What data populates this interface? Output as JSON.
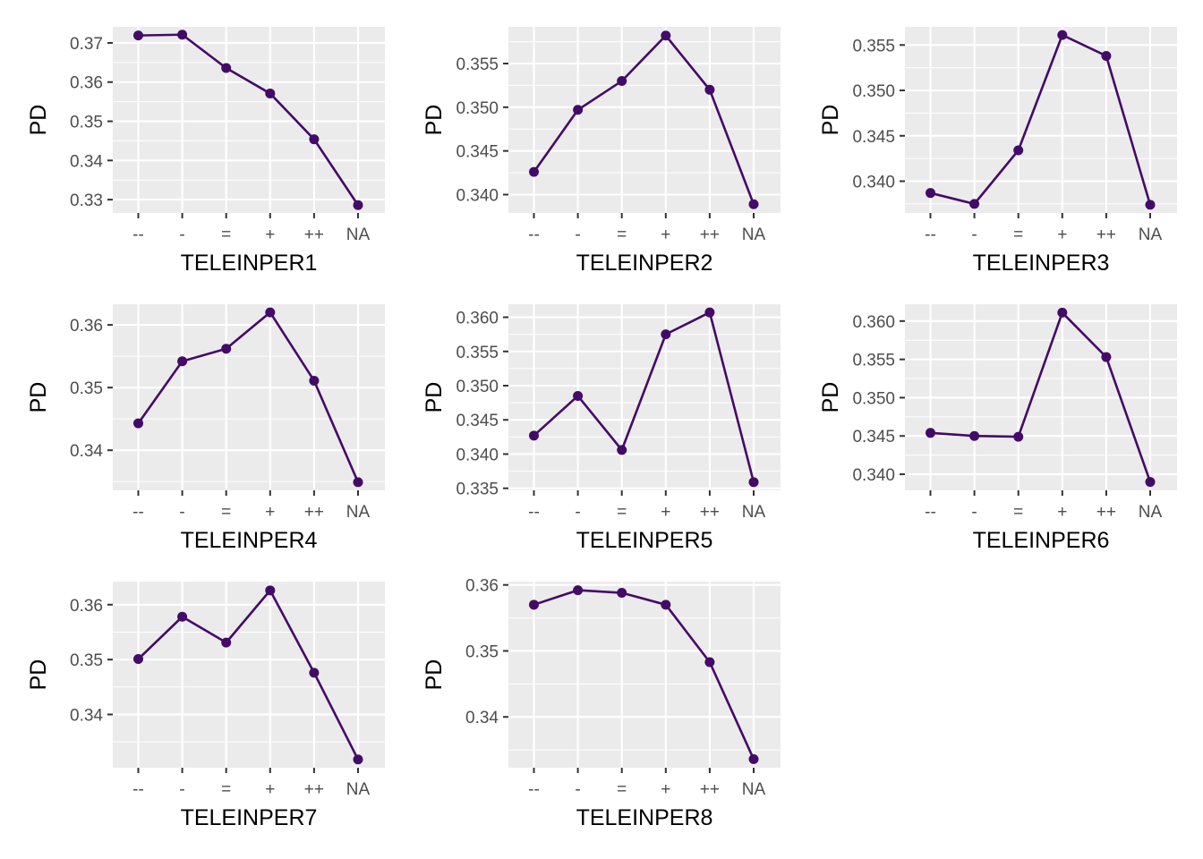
{
  "chart_data": [
    {
      "type": "line",
      "xlabel": "TELEINPER1",
      "ylabel": "PD",
      "categories": [
        "--",
        "-",
        "=",
        "+",
        "++",
        "NA"
      ],
      "values": [
        0.3719,
        0.3721,
        0.3636,
        0.3571,
        0.3454,
        0.3286
      ],
      "ylim": [
        0.3266,
        0.3741
      ],
      "yticks": [
        0.33,
        0.34,
        0.35,
        0.36,
        0.37
      ],
      "ytick_labels": [
        "0.33",
        "0.34",
        "0.35",
        "0.36",
        "0.37"
      ]
    },
    {
      "type": "line",
      "xlabel": "TELEINPER2",
      "ylabel": "PD",
      "categories": [
        "--",
        "-",
        "=",
        "+",
        "++",
        "NA"
      ],
      "values": [
        0.3426,
        0.3497,
        0.353,
        0.3582,
        0.352,
        0.3389
      ],
      "ylim": [
        0.3379,
        0.3592
      ],
      "yticks": [
        0.34,
        0.345,
        0.35,
        0.355
      ],
      "ytick_labels": [
        "0.340",
        "0.345",
        "0.350",
        "0.355"
      ]
    },
    {
      "type": "line",
      "xlabel": "TELEINPER3",
      "ylabel": "PD",
      "categories": [
        "--",
        "-",
        "=",
        "+",
        "++",
        "NA"
      ],
      "values": [
        0.3387,
        0.3375,
        0.3434,
        0.3561,
        0.3538,
        0.3374
      ],
      "ylim": [
        0.3365,
        0.357
      ],
      "yticks": [
        0.34,
        0.345,
        0.35,
        0.355
      ],
      "ytick_labels": [
        "0.340",
        "0.345",
        "0.350",
        "0.355"
      ]
    },
    {
      "type": "line",
      "xlabel": "TELEINPER4",
      "ylabel": "PD",
      "categories": [
        "--",
        "-",
        "=",
        "+",
        "++",
        "NA"
      ],
      "values": [
        0.3443,
        0.3542,
        0.3562,
        0.362,
        0.3511,
        0.3349
      ],
      "ylim": [
        0.3336,
        0.3633
      ],
      "yticks": [
        0.34,
        0.35,
        0.36
      ],
      "ytick_labels": [
        "0.34",
        "0.35",
        "0.36"
      ]
    },
    {
      "type": "line",
      "xlabel": "TELEINPER5",
      "ylabel": "PD",
      "categories": [
        "--",
        "-",
        "=",
        "+",
        "++",
        "NA"
      ],
      "values": [
        0.3427,
        0.3485,
        0.3406,
        0.3575,
        0.3607,
        0.3359
      ],
      "ylim": [
        0.3347,
        0.3619
      ],
      "yticks": [
        0.335,
        0.34,
        0.345,
        0.35,
        0.355,
        0.36
      ],
      "ytick_labels": [
        "0.335",
        "0.340",
        "0.345",
        "0.350",
        "0.355",
        "0.360"
      ]
    },
    {
      "type": "line",
      "xlabel": "TELEINPER6",
      "ylabel": "PD",
      "categories": [
        "--",
        "-",
        "=",
        "+",
        "++",
        "NA"
      ],
      "values": [
        0.3454,
        0.345,
        0.3449,
        0.3611,
        0.3553,
        0.339
      ],
      "ylim": [
        0.3379,
        0.3622
      ],
      "yticks": [
        0.34,
        0.345,
        0.35,
        0.355,
        0.36
      ],
      "ytick_labels": [
        "0.340",
        "0.345",
        "0.350",
        "0.355",
        "0.360"
      ]
    },
    {
      "type": "line",
      "xlabel": "TELEINPER7",
      "ylabel": "PD",
      "categories": [
        "--",
        "-",
        "=",
        "+",
        "++",
        "NA"
      ],
      "values": [
        0.3501,
        0.3578,
        0.3531,
        0.3626,
        0.3476,
        0.3318
      ],
      "ylim": [
        0.3303,
        0.3642
      ],
      "yticks": [
        0.34,
        0.35,
        0.36
      ],
      "ytick_labels": [
        "0.34",
        "0.35",
        "0.36"
      ]
    },
    {
      "type": "line",
      "xlabel": "TELEINPER8",
      "ylabel": "PD",
      "categories": [
        "--",
        "-",
        "=",
        "+",
        "++",
        "NA"
      ],
      "values": [
        0.357,
        0.3592,
        0.3588,
        0.357,
        0.3483,
        0.3336
      ],
      "ylim": [
        0.3323,
        0.3605
      ],
      "yticks": [
        0.34,
        0.35,
        0.36
      ],
      "ytick_labels": [
        "0.34",
        "0.35",
        "0.36"
      ]
    }
  ],
  "style": {
    "series_color": "#440a68",
    "panel_color": "#ebebeb",
    "grid_color": "#ffffff",
    "grid": true,
    "legend": "none"
  }
}
